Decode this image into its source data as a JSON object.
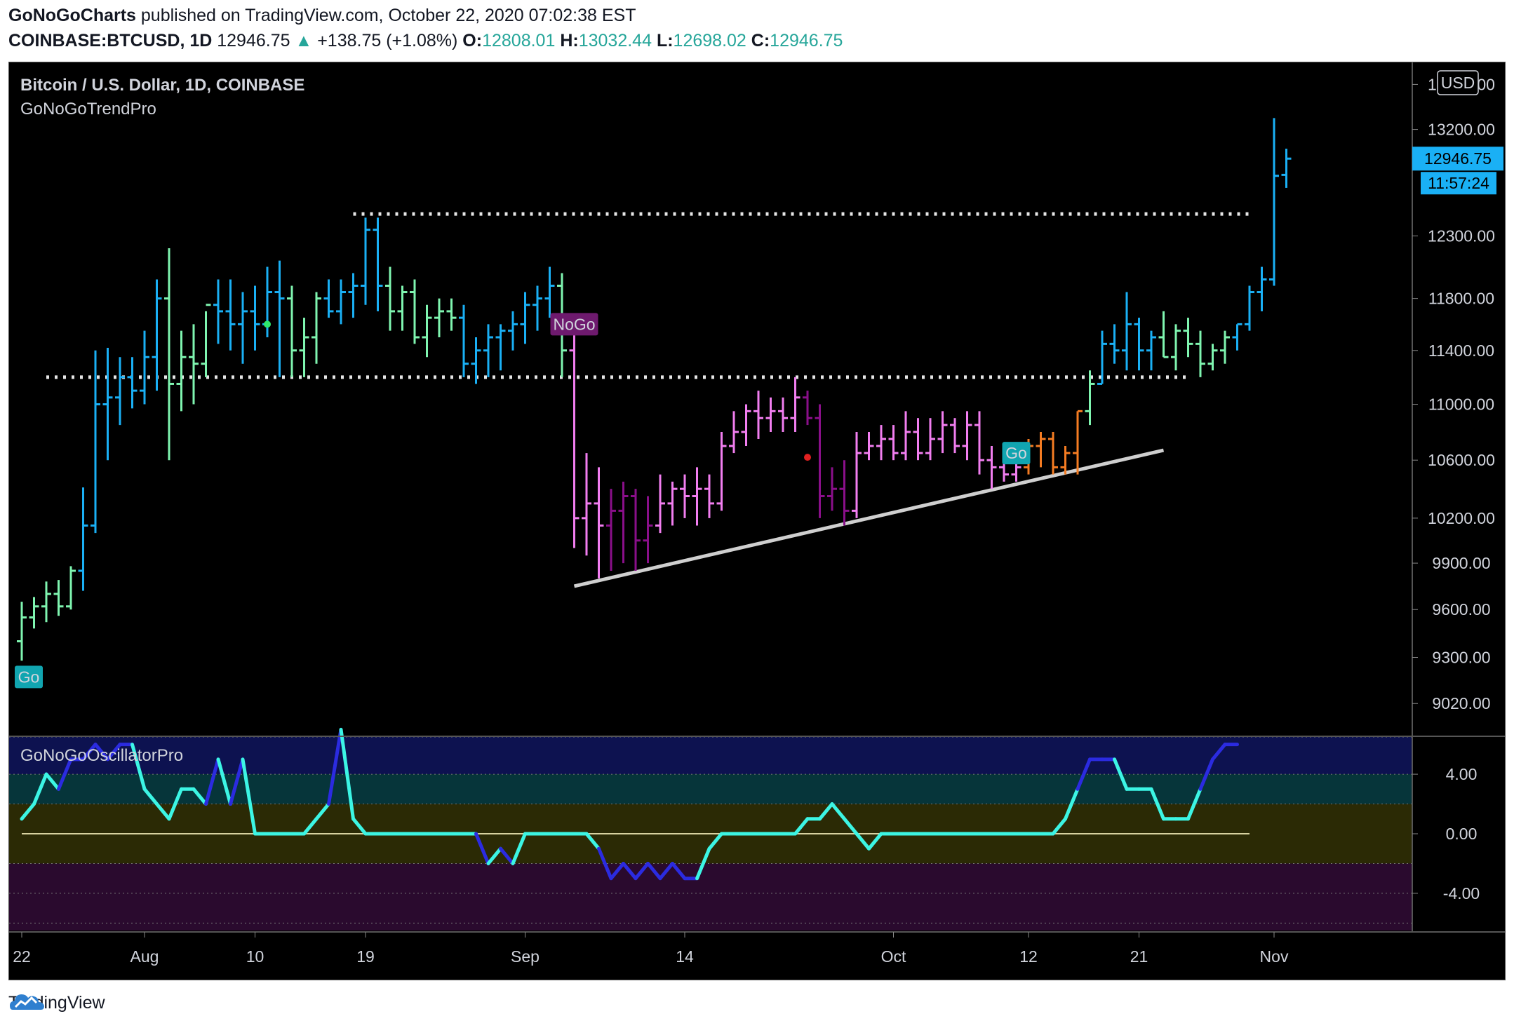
{
  "header": {
    "author": "GoNoGoCharts",
    "published_text": "published on TradingView.com, October 22, 2020 07:02:38 EST",
    "symbol": "COINBASE:BTCUSD, 1D",
    "last": "12946.75",
    "change": "+138.75 (+1.08%)",
    "o_label": "O:",
    "o_value": "12808.01",
    "h_label": "H:",
    "h_value": "13032.44",
    "l_label": "L:",
    "l_value": "12698.02",
    "c_label": "C:",
    "c_value": "12946.75"
  },
  "pane": {
    "title": "Bitcoin / U.S. Dollar, 1D, COINBASE",
    "indicator": "GoNoGoTrendPro",
    "currency_button": "USD",
    "price_tag": "12946.75",
    "countdown_tag": "11:57:24",
    "oscillator_title": "GoNoGoOscillatorPro"
  },
  "footer": {
    "brand": "TradingView"
  },
  "colors": {
    "go_strong": "#1ab0f5",
    "go_weak": "#7ff5b0",
    "nogo_weak": "#f27ef0",
    "nogo_strong": "#8a0f8a",
    "neutral": "#f57c22",
    "osc_high": "#3cf5e4",
    "osc_low": "#2b2be0"
  },
  "chart_data": {
    "type": "ohlc",
    "price_axis": {
      "ticks": [
        9020,
        9300,
        9600,
        9900,
        10200,
        10600,
        11000,
        11400,
        11800,
        12300,
        13200,
        13600
      ],
      "tick_labels": [
        "9020.00",
        "9300.00",
        "9600.00",
        "9900.00",
        "10200.00",
        "10600.00",
        "11000.00",
        "11400.00",
        "11800.00",
        "12300.00",
        "13200.00",
        "13600.00"
      ],
      "scale": "log",
      "range": [
        8830,
        13800
      ]
    },
    "time_axis": {
      "labels": [
        {
          "text": "22",
          "idx": 0
        },
        {
          "text": "Aug",
          "idx": 10
        },
        {
          "text": "10",
          "idx": 19
        },
        {
          "text": "19",
          "idx": 28
        },
        {
          "text": "Sep",
          "idx": 41
        },
        {
          "text": "14",
          "idx": 54
        },
        {
          "text": "Oct",
          "idx": 71
        },
        {
          "text": "12",
          "idx": 82
        },
        {
          "text": "21",
          "idx": 91
        },
        {
          "text": "Nov",
          "idx": 102
        }
      ]
    },
    "bars": [
      [
        9400,
        9650,
        9280,
        9550,
        "go_weak"
      ],
      [
        9550,
        9680,
        9480,
        9620,
        "go_weak"
      ],
      [
        9620,
        9780,
        9520,
        9700,
        "go_weak"
      ],
      [
        9700,
        9790,
        9560,
        9620,
        "go_weak"
      ],
      [
        9620,
        9880,
        9600,
        9850,
        "go_weak"
      ],
      [
        9850,
        10410,
        9720,
        10150,
        "go_strong"
      ],
      [
        10150,
        11400,
        10100,
        11000,
        "go_strong"
      ],
      [
        11000,
        11420,
        10600,
        11050,
        "go_strong"
      ],
      [
        11050,
        11350,
        10850,
        11200,
        "go_strong"
      ],
      [
        11200,
        11350,
        10970,
        11100,
        "go_strong"
      ],
      [
        11100,
        11550,
        11000,
        11350,
        "go_strong"
      ],
      [
        11350,
        11950,
        11100,
        11800,
        "go_strong"
      ],
      [
        11800,
        12200,
        10600,
        11150,
        "go_weak"
      ],
      [
        11150,
        11550,
        10950,
        11350,
        "go_weak"
      ],
      [
        11350,
        11600,
        11000,
        11300,
        "go_weak"
      ],
      [
        11300,
        11700,
        11200,
        11750,
        "go_weak"
      ],
      [
        11750,
        11950,
        11450,
        11700,
        "go_strong"
      ],
      [
        11700,
        11950,
        11400,
        11600,
        "go_strong"
      ],
      [
        11600,
        11850,
        11300,
        11700,
        "go_strong"
      ],
      [
        11700,
        11900,
        11400,
        11600,
        "go_strong"
      ],
      [
        11600,
        12050,
        11500,
        11850,
        "go_strong"
      ],
      [
        11850,
        12100,
        11200,
        11800,
        "go_strong"
      ],
      [
        11800,
        11900,
        11200,
        11400,
        "go_weak"
      ],
      [
        11400,
        11650,
        11200,
        11500,
        "go_weak"
      ],
      [
        11500,
        11850,
        11300,
        11800,
        "go_weak"
      ],
      [
        11800,
        11950,
        11650,
        11700,
        "go_strong"
      ],
      [
        11700,
        11950,
        11600,
        11850,
        "go_strong"
      ],
      [
        11850,
        12000,
        11650,
        11900,
        "go_strong"
      ],
      [
        11900,
        12450,
        11750,
        12350,
        "go_strong"
      ],
      [
        12350,
        12450,
        11700,
        11900,
        "go_strong"
      ],
      [
        11900,
        12050,
        11550,
        11700,
        "go_weak"
      ],
      [
        11700,
        11900,
        11550,
        11850,
        "go_weak"
      ],
      [
        11850,
        11950,
        11450,
        11500,
        "go_weak"
      ],
      [
        11500,
        11750,
        11350,
        11650,
        "go_weak"
      ],
      [
        11650,
        11800,
        11500,
        11700,
        "go_weak"
      ],
      [
        11700,
        11800,
        11550,
        11650,
        "go_weak"
      ],
      [
        11650,
        11750,
        11200,
        11300,
        "go_strong"
      ],
      [
        11300,
        11500,
        11150,
        11400,
        "go_strong"
      ],
      [
        11400,
        11600,
        11200,
        11500,
        "go_strong"
      ],
      [
        11500,
        11600,
        11250,
        11550,
        "go_strong"
      ],
      [
        11550,
        11700,
        11400,
        11600,
        "go_strong"
      ],
      [
        11600,
        11850,
        11450,
        11750,
        "go_strong"
      ],
      [
        11750,
        11900,
        11550,
        11800,
        "go_strong"
      ],
      [
        11800,
        12050,
        11650,
        11900,
        "go_strong"
      ],
      [
        11900,
        12000,
        11200,
        11400,
        "go_weak"
      ],
      [
        11400,
        11550,
        10000,
        10200,
        "nogo_weak"
      ],
      [
        10200,
        10650,
        9950,
        10300,
        "nogo_weak"
      ],
      [
        10300,
        10550,
        9800,
        10150,
        "nogo_weak"
      ],
      [
        10150,
        10400,
        9850,
        10250,
        "nogo_strong"
      ],
      [
        10250,
        10450,
        9900,
        10350,
        "nogo_strong"
      ],
      [
        10350,
        10400,
        9850,
        10050,
        "nogo_strong"
      ],
      [
        10050,
        10350,
        9900,
        10150,
        "nogo_strong"
      ],
      [
        10150,
        10500,
        10100,
        10300,
        "nogo_weak"
      ],
      [
        10300,
        10450,
        10150,
        10400,
        "nogo_weak"
      ],
      [
        10400,
        10500,
        10200,
        10350,
        "nogo_weak"
      ],
      [
        10350,
        10550,
        10150,
        10400,
        "nogo_weak"
      ],
      [
        10400,
        10500,
        10200,
        10300,
        "nogo_weak"
      ],
      [
        10300,
        10800,
        10250,
        10700,
        "nogo_weak"
      ],
      [
        10700,
        10950,
        10650,
        10800,
        "nogo_weak"
      ],
      [
        10800,
        11000,
        10700,
        10950,
        "nogo_weak"
      ],
      [
        10950,
        11100,
        10750,
        10900,
        "nogo_weak"
      ],
      [
        10900,
        11050,
        10800,
        10950,
        "nogo_weak"
      ],
      [
        10950,
        11050,
        10800,
        10900,
        "nogo_weak"
      ],
      [
        10900,
        11200,
        10800,
        11050,
        "nogo_weak"
      ],
      [
        11050,
        11100,
        10850,
        10900,
        "nogo_strong"
      ],
      [
        10900,
        11000,
        10200,
        10350,
        "nogo_strong"
      ],
      [
        10350,
        10550,
        10250,
        10400,
        "nogo_strong"
      ],
      [
        10400,
        10600,
        10150,
        10250,
        "nogo_strong"
      ],
      [
        10250,
        10800,
        10200,
        10650,
        "nogo_weak"
      ],
      [
        10650,
        10800,
        10600,
        10700,
        "nogo_weak"
      ],
      [
        10700,
        10850,
        10600,
        10750,
        "nogo_weak"
      ],
      [
        10750,
        10850,
        10600,
        10650,
        "nogo_weak"
      ],
      [
        10650,
        10950,
        10600,
        10800,
        "nogo_weak"
      ],
      [
        10800,
        10900,
        10600,
        10650,
        "nogo_weak"
      ],
      [
        10650,
        10900,
        10600,
        10750,
        "nogo_weak"
      ],
      [
        10750,
        10950,
        10650,
        10850,
        "nogo_weak"
      ],
      [
        10850,
        10900,
        10650,
        10700,
        "nogo_weak"
      ],
      [
        10700,
        10950,
        10600,
        10850,
        "nogo_weak"
      ],
      [
        10850,
        10950,
        10500,
        10600,
        "nogo_weak"
      ],
      [
        10600,
        10700,
        10400,
        10550,
        "nogo_weak"
      ],
      [
        10550,
        10650,
        10450,
        10500,
        "nogo_weak"
      ],
      [
        10500,
        10600,
        10450,
        10550,
        "nogo_weak"
      ],
      [
        10550,
        10750,
        10500,
        10700,
        "neutral"
      ],
      [
        10700,
        10800,
        10550,
        10750,
        "neutral"
      ],
      [
        10750,
        10800,
        10500,
        10550,
        "neutral"
      ],
      [
        10550,
        10700,
        10500,
        10650,
        "neutral"
      ],
      [
        10650,
        10950,
        10500,
        10950,
        "neutral"
      ],
      [
        10950,
        11250,
        10850,
        11150,
        "go_weak"
      ],
      [
        11150,
        11550,
        11150,
        11450,
        "go_strong"
      ],
      [
        11450,
        11600,
        11300,
        11400,
        "go_strong"
      ],
      [
        11400,
        11850,
        11250,
        11600,
        "go_strong"
      ]
    ],
    "bar_last": [
      [
        11600,
        11650,
        11250,
        11400,
        "go_strong"
      ],
      [
        11400,
        11550,
        11250,
        11500,
        "go_strong"
      ],
      [
        11500,
        11700,
        11350,
        11350,
        "go_weak"
      ],
      [
        11350,
        11600,
        11250,
        11550,
        "go_weak"
      ],
      [
        11550,
        11650,
        11350,
        11450,
        "go_weak"
      ],
      [
        11450,
        11550,
        11200,
        11300,
        "go_weak"
      ],
      [
        11300,
        11450,
        11250,
        11400,
        "go_weak"
      ],
      [
        11400,
        11550,
        11300,
        11500,
        "go_weak"
      ],
      [
        11500,
        11600,
        11400,
        11600,
        "go_strong"
      ],
      [
        11600,
        11900,
        11550,
        11850,
        "go_strong"
      ],
      [
        11850,
        12050,
        11700,
        11950,
        "go_strong"
      ],
      [
        11950,
        13300,
        11900,
        12800,
        "go_strong"
      ],
      [
        12808.01,
        13032.44,
        12698.02,
        12946.75,
        "go_strong"
      ]
    ],
    "resistance_levels": [
      {
        "price": 12480,
        "from_idx": 27,
        "to_idx": 100
      },
      {
        "price": 11200,
        "from_idx": 2,
        "to_idx": 95
      }
    ],
    "trendline": {
      "from": [
        45,
        9750
      ],
      "to": [
        93,
        10670
      ]
    },
    "markers": [
      {
        "label": "Go",
        "idx": 0,
        "price": 9180,
        "kind": "go"
      },
      {
        "label": "NoGo",
        "idx": 45,
        "price": 11600,
        "kind": "nogo"
      },
      {
        "label": "Go",
        "idx": 81,
        "price": 10650,
        "kind": "go"
      }
    ],
    "oscillator": {
      "range": [
        -6.5,
        6.5
      ],
      "ticks": [
        4.0,
        0.0,
        -4.0
      ],
      "tick_labels": [
        "4.00",
        "0.00",
        "-4.00"
      ],
      "values": [
        1,
        2,
        4,
        3,
        5,
        5,
        6,
        5,
        6,
        6,
        3,
        2,
        1,
        3,
        3,
        2,
        5,
        2,
        5,
        0,
        0,
        0,
        0,
        0,
        1,
        2,
        7,
        1,
        0,
        0,
        0,
        0,
        0,
        0,
        0,
        0,
        0,
        0,
        -2,
        -1,
        -2,
        0,
        0,
        0,
        0,
        0,
        0,
        -1,
        -3,
        -2,
        -3,
        -2,
        -3,
        -2,
        -3,
        -3,
        -1,
        0,
        0,
        0,
        0,
        0,
        0,
        0,
        1,
        1,
        2,
        1,
        0,
        -1,
        0,
        0,
        0,
        0,
        0,
        0,
        0,
        0,
        0,
        0,
        0,
        0,
        0,
        0,
        0,
        1,
        3,
        5,
        5,
        5,
        3,
        3,
        3,
        1,
        1,
        1,
        3,
        5,
        6,
        6
      ]
    }
  }
}
